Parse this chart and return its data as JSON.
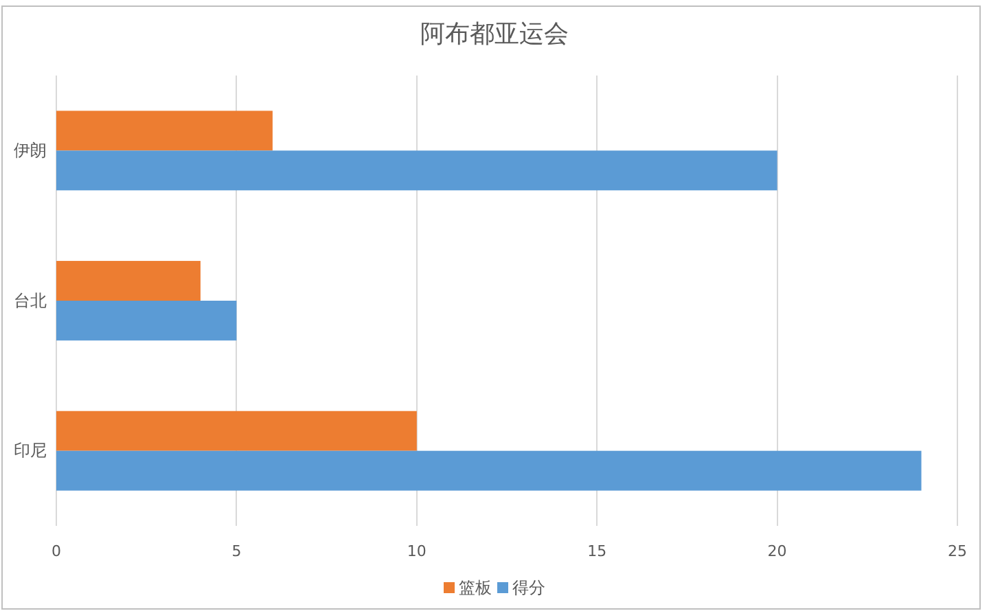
{
  "chart_data": {
    "type": "bar",
    "title": "阿布都亚运会",
    "orientation": "horizontal",
    "categories": [
      "伊朗",
      "台北",
      "印尼"
    ],
    "series": [
      {
        "name": "篮板",
        "color": "#ed7d31",
        "values": [
          6,
          4,
          10
        ]
      },
      {
        "name": "得分",
        "color": "#5b9bd5",
        "values": [
          20,
          5,
          24
        ]
      }
    ],
    "xlim": [
      0,
      25
    ],
    "xticks": [
      0,
      5,
      10,
      15,
      20,
      25
    ],
    "grid": "x",
    "legend": "bottom"
  }
}
